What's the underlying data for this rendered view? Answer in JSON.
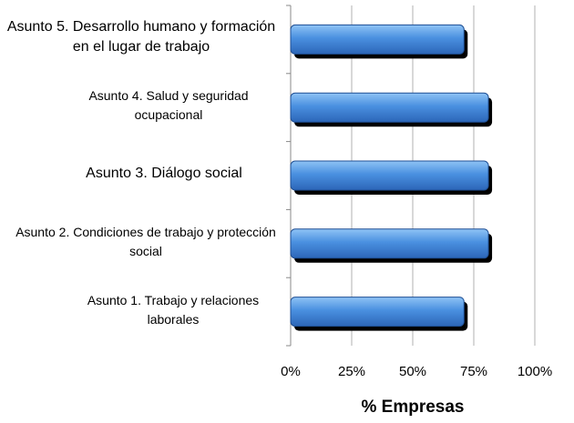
{
  "chart_data": {
    "type": "bar",
    "orientation": "horizontal",
    "categories": [
      "Asunto 1. Trabajo y relaciones laborales",
      "Asunto 2. Condiciones de trabajo y protección social",
      "Asunto 3. Diálogo social",
      "Asunto 4. Salud y seguridad ocupacional",
      "Asunto 5. Desarrollo humano y formación en el lugar de trabajo"
    ],
    "values": [
      71,
      81,
      81,
      81,
      71
    ],
    "color": "#4a90e0",
    "x_label": "% Empresas",
    "xlim": [
      0,
      100
    ],
    "xticks": [
      {
        "value": 0,
        "label": "0%"
      },
      {
        "value": 25,
        "label": "25%"
      },
      {
        "value": 50,
        "label": "50%"
      },
      {
        "value": 75,
        "label": "75%"
      },
      {
        "value": 100,
        "label": "100%"
      }
    ],
    "grid": true
  }
}
